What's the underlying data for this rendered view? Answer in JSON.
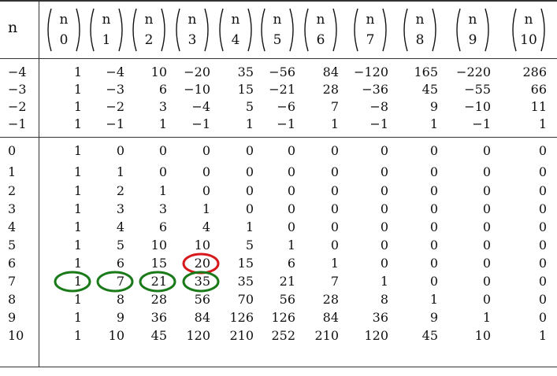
{
  "header": {
    "row_label": "n",
    "columns": [
      {
        "top": "n",
        "bottom": "0"
      },
      {
        "top": "n",
        "bottom": "1"
      },
      {
        "top": "n",
        "bottom": "2"
      },
      {
        "top": "n",
        "bottom": "3"
      },
      {
        "top": "n",
        "bottom": "4"
      },
      {
        "top": "n",
        "bottom": "5"
      },
      {
        "top": "n",
        "bottom": "6"
      },
      {
        "top": "n",
        "bottom": "7"
      },
      {
        "top": "n",
        "bottom": "8"
      },
      {
        "top": "n",
        "bottom": "9"
      },
      {
        "top": "n",
        "bottom": "10"
      }
    ]
  },
  "rows": [
    {
      "n": "−4",
      "values": [
        "1",
        "−4",
        "10",
        "−20",
        "35",
        "−56",
        "84",
        "−120",
        "165",
        "−220",
        "286"
      ]
    },
    {
      "n": "−3",
      "values": [
        "1",
        "−3",
        "6",
        "−10",
        "15",
        "−21",
        "28",
        "−36",
        "45",
        "−55",
        "66"
      ]
    },
    {
      "n": "−2",
      "values": [
        "1",
        "−2",
        "3",
        "−4",
        "5",
        "−6",
        "7",
        "−8",
        "9",
        "−10",
        "11"
      ]
    },
    {
      "n": "−1",
      "values": [
        "1",
        "−1",
        "1",
        "−1",
        "1",
        "−1",
        "1",
        "−1",
        "1",
        "−1",
        "1"
      ]
    },
    {
      "n": "0",
      "values": [
        "1",
        "0",
        "0",
        "0",
        "0",
        "0",
        "0",
        "0",
        "0",
        "0",
        "0"
      ]
    },
    {
      "n": "1",
      "values": [
        "1",
        "1",
        "0",
        "0",
        "0",
        "0",
        "0",
        "0",
        "0",
        "0",
        "0"
      ]
    },
    {
      "n": "2",
      "values": [
        "1",
        "2",
        "1",
        "0",
        "0",
        "0",
        "0",
        "0",
        "0",
        "0",
        "0"
      ]
    },
    {
      "n": "3",
      "values": [
        "1",
        "3",
        "3",
        "1",
        "0",
        "0",
        "0",
        "0",
        "0",
        "0",
        "0"
      ]
    },
    {
      "n": "4",
      "values": [
        "1",
        "4",
        "6",
        "4",
        "1",
        "0",
        "0",
        "0",
        "0",
        "0",
        "0"
      ]
    },
    {
      "n": "5",
      "values": [
        "1",
        "5",
        "10",
        "10",
        "5",
        "1",
        "0",
        "0",
        "0",
        "0",
        "0"
      ]
    },
    {
      "n": "6",
      "values": [
        "1",
        "6",
        "15",
        "20",
        "15",
        "6",
        "1",
        "0",
        "0",
        "0",
        "0"
      ]
    },
    {
      "n": "7",
      "values": [
        "1",
        "7",
        "21",
        "35",
        "35",
        "21",
        "7",
        "1",
        "0",
        "0",
        "0"
      ]
    },
    {
      "n": "8",
      "values": [
        "1",
        "8",
        "28",
        "56",
        "70",
        "56",
        "28",
        "8",
        "1",
        "0",
        "0"
      ]
    },
    {
      "n": "9",
      "values": [
        "1",
        "9",
        "36",
        "84",
        "126",
        "126",
        "84",
        "36",
        "9",
        "1",
        "0"
      ]
    },
    {
      "n": "10",
      "values": [
        "1",
        "10",
        "45",
        "120",
        "210",
        "252",
        "210",
        "120",
        "45",
        "10",
        "1"
      ]
    }
  ],
  "highlights": [
    {
      "row": 10,
      "col": 3,
      "color": "#d7191c"
    },
    {
      "row": 11,
      "col": 0,
      "color": "#1a7a1a"
    },
    {
      "row": 11,
      "col": 1,
      "color": "#1a7a1a"
    },
    {
      "row": 11,
      "col": 2,
      "color": "#1a7a1a"
    },
    {
      "row": 11,
      "col": 3,
      "color": "#1a7a1a"
    }
  ]
}
